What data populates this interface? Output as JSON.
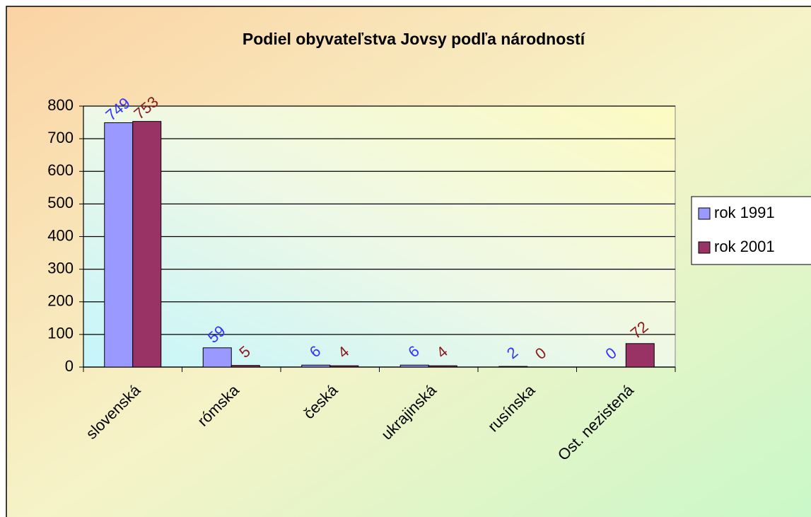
{
  "chart_data": {
    "type": "bar",
    "title": "Podiel obyvateľstva Jovsy podľa národností",
    "categories": [
      "slovenská",
      "rómska",
      "česká",
      "ukrajinská",
      "rusínska",
      "Ost. nezistená"
    ],
    "series": [
      {
        "name": "rok 1991",
        "color": "#9999ff",
        "label_color": "#3333ff",
        "values": [
          749,
          59,
          6,
          6,
          2,
          0
        ]
      },
      {
        "name": "rok 2001",
        "color": "#993366",
        "label_color": "#8b1a1a",
        "values": [
          753,
          5,
          4,
          4,
          0,
          72
        ]
      }
    ],
    "ylim": [
      0,
      800
    ],
    "yticks": [
      0,
      100,
      200,
      300,
      400,
      500,
      600,
      700,
      800
    ],
    "grid": true,
    "legend": "right"
  }
}
